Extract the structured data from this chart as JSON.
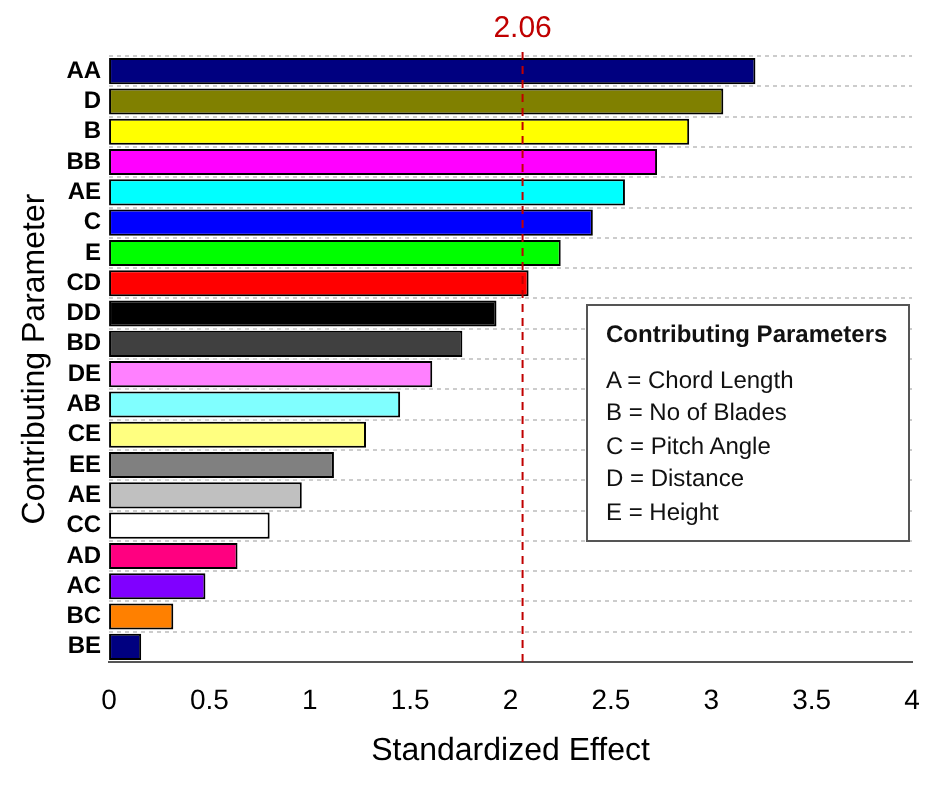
{
  "chart_data": {
    "type": "bar",
    "orientation": "horizontal",
    "xlabel": "Standardized Effect",
    "ylabel": "Contributing Parameter",
    "categories": [
      "AA",
      "D",
      "B",
      "BB",
      "AE",
      "C",
      "E",
      "CD",
      "DD",
      "BD",
      "DE",
      "AB",
      "CE",
      "EE",
      "AE",
      "CC",
      "AD",
      "AC",
      "BC",
      "BE"
    ],
    "values": [
      3.22,
      3.06,
      2.89,
      2.73,
      2.57,
      2.41,
      2.25,
      2.09,
      1.93,
      1.76,
      1.61,
      1.45,
      1.28,
      1.12,
      0.96,
      0.8,
      0.64,
      0.48,
      0.32,
      0.16
    ],
    "colors": [
      "#000080",
      "#808000",
      "#ffff00",
      "#ff00ff",
      "#00ffff",
      "#0000ff",
      "#00ff00",
      "#ff0000",
      "#000000",
      "#404040",
      "#ff80ff",
      "#80ffff",
      "#ffff80",
      "#808080",
      "#c0c0c0",
      "#ffffff",
      "#ff0080",
      "#8000ff",
      "#ff8000",
      "#000080"
    ],
    "xlim": [
      0,
      4
    ],
    "xticks": [
      0,
      0.5,
      1,
      1.5,
      2,
      2.5,
      3,
      3.5,
      4
    ],
    "grid": "y",
    "ref_lines": [
      {
        "axis": "x",
        "value": 2.06,
        "label": "2.06",
        "color": "#c00000",
        "line_style": "dashed"
      }
    ],
    "annotations": [
      "Contributing Parameters",
      "A = Chord Length",
      "B = No of Blades",
      "C = Pitch Angle",
      "D = Distance",
      "E = Height"
    ]
  }
}
